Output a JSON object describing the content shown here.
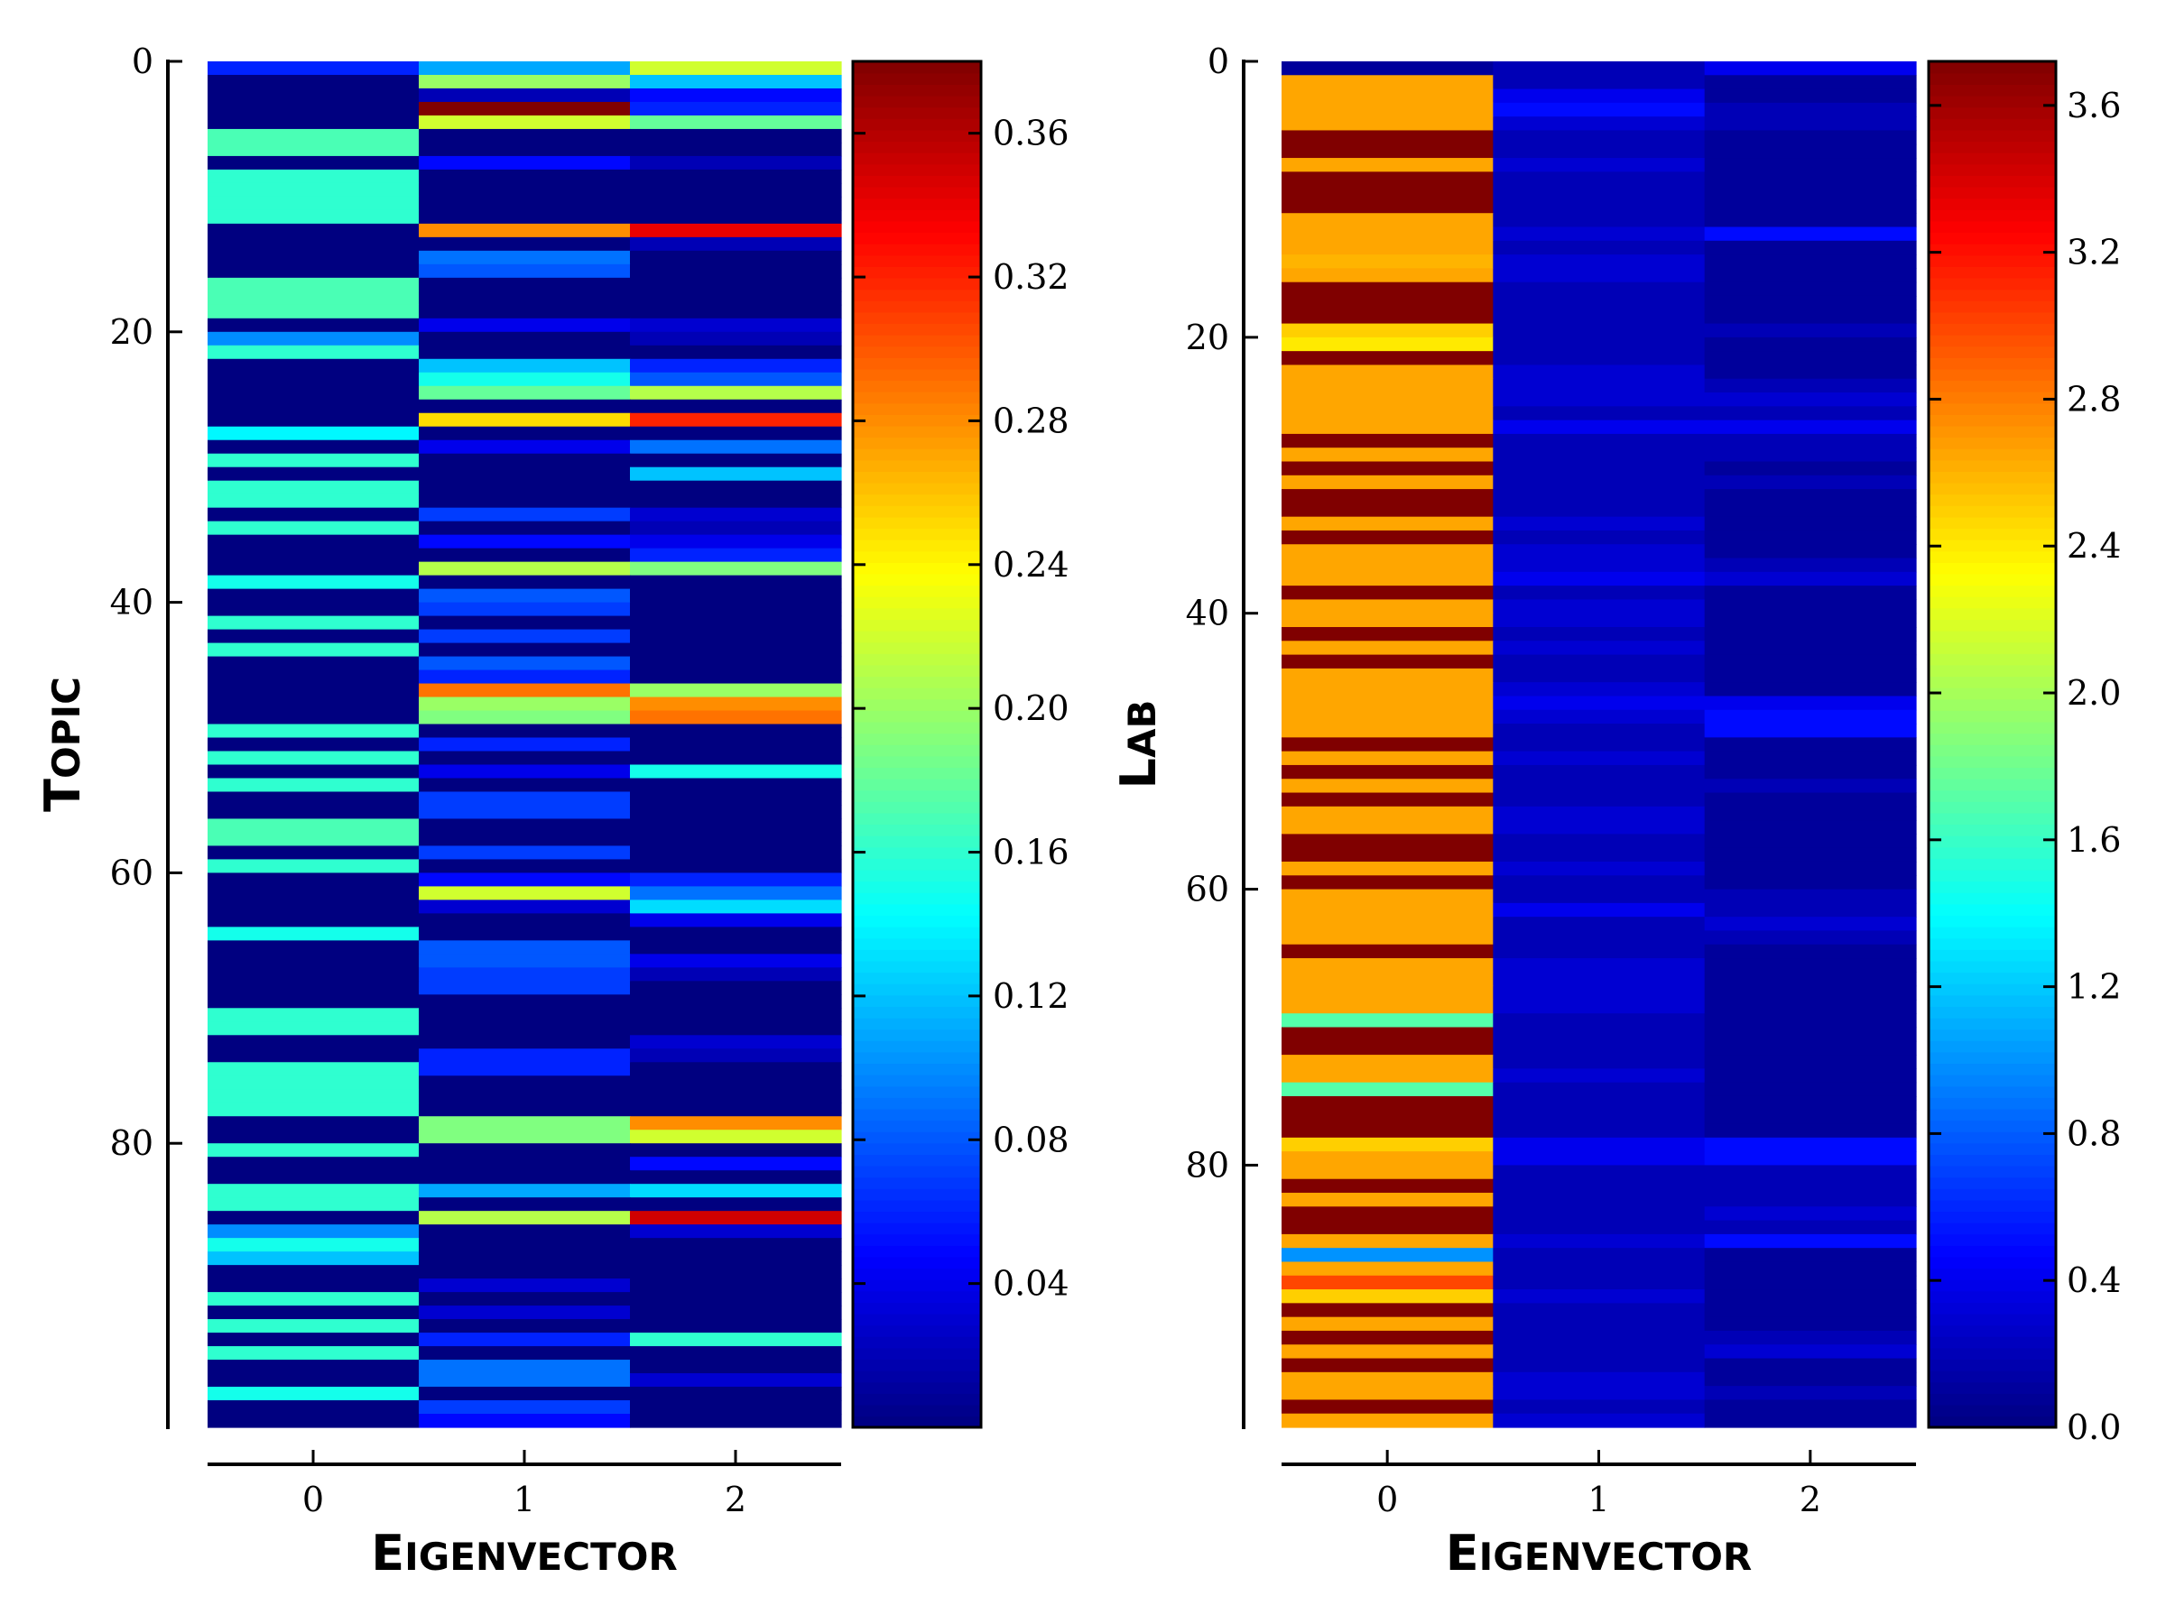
{
  "chart_data": [
    {
      "type": "heatmap",
      "ylabel": "Topic",
      "xlabel": "Eigenvector",
      "x_categories": [
        "0",
        "1",
        "2"
      ],
      "y_ticks": [
        0,
        20,
        40,
        60,
        80
      ],
      "ylim": [
        0,
        99
      ],
      "colormap": "jet",
      "colorbar": {
        "vmin": 0.0,
        "vmax": 0.38,
        "ticks": [
          "0.04",
          "0.08",
          "0.12",
          "0.16",
          "0.20",
          "0.24",
          "0.28",
          "0.32",
          "0.36"
        ]
      },
      "values": [
        [
          0.06,
          0.11,
          0.22
        ],
        [
          0.0,
          0.2,
          0.12
        ],
        [
          0.0,
          0.02,
          0.05
        ],
        [
          0.0,
          0.38,
          0.06
        ],
        [
          0.0,
          0.22,
          0.18
        ],
        [
          0.17,
          0.0,
          0.0
        ],
        [
          0.17,
          0.0,
          0.0
        ],
        [
          0.0,
          0.05,
          0.02
        ],
        [
          0.16,
          0.0,
          0.0
        ],
        [
          0.16,
          0.0,
          0.0
        ],
        [
          0.16,
          0.0,
          0.0
        ],
        [
          0.16,
          0.0,
          0.0
        ],
        [
          0.0,
          0.28,
          0.34
        ],
        [
          0.0,
          0.0,
          0.02
        ],
        [
          0.0,
          0.09,
          0.0
        ],
        [
          0.0,
          0.08,
          0.0
        ],
        [
          0.17,
          0.0,
          0.0
        ],
        [
          0.17,
          0.0,
          0.0
        ],
        [
          0.17,
          0.0,
          0.0
        ],
        [
          0.0,
          0.04,
          0.03
        ],
        [
          0.1,
          0.0,
          0.02
        ],
        [
          0.16,
          0.0,
          0.0
        ],
        [
          0.0,
          0.12,
          0.06
        ],
        [
          0.0,
          0.15,
          0.08
        ],
        [
          0.0,
          0.18,
          0.21
        ],
        [
          0.0,
          0.0,
          0.0
        ],
        [
          0.0,
          0.25,
          0.32
        ],
        [
          0.14,
          0.0,
          0.0
        ],
        [
          0.0,
          0.04,
          0.09
        ],
        [
          0.16,
          0.0,
          0.0
        ],
        [
          0.0,
          0.0,
          0.12
        ],
        [
          0.16,
          0.0,
          0.0
        ],
        [
          0.16,
          0.0,
          0.0
        ],
        [
          0.0,
          0.07,
          0.03
        ],
        [
          0.16,
          0.0,
          0.02
        ],
        [
          0.0,
          0.05,
          0.04
        ],
        [
          0.0,
          0.0,
          0.06
        ],
        [
          0.0,
          0.21,
          0.19
        ],
        [
          0.15,
          0.0,
          0.0
        ],
        [
          0.0,
          0.08,
          0.0
        ],
        [
          0.0,
          0.07,
          0.0
        ],
        [
          0.16,
          0.0,
          0.0
        ],
        [
          0.0,
          0.07,
          0.0
        ],
        [
          0.16,
          0.0,
          0.0
        ],
        [
          0.0,
          0.08,
          0.0
        ],
        [
          0.0,
          0.06,
          0.0
        ],
        [
          0.0,
          0.29,
          0.2
        ],
        [
          0.0,
          0.2,
          0.28
        ],
        [
          0.0,
          0.19,
          0.29
        ],
        [
          0.16,
          0.0,
          0.0
        ],
        [
          0.0,
          0.06,
          0.0
        ],
        [
          0.16,
          0.0,
          0.0
        ],
        [
          0.0,
          0.04,
          0.15
        ],
        [
          0.16,
          0.0,
          0.0
        ],
        [
          0.0,
          0.07,
          0.0
        ],
        [
          0.0,
          0.07,
          0.0
        ],
        [
          0.17,
          0.0,
          0.0
        ],
        [
          0.17,
          0.0,
          0.0
        ],
        [
          0.0,
          0.07,
          0.0
        ],
        [
          0.16,
          0.0,
          0.0
        ],
        [
          0.0,
          0.05,
          0.06
        ],
        [
          0.0,
          0.22,
          0.09
        ],
        [
          0.0,
          0.03,
          0.13
        ],
        [
          0.0,
          0.0,
          0.04
        ],
        [
          0.15,
          0.0,
          0.0
        ],
        [
          0.0,
          0.08,
          0.0
        ],
        [
          0.0,
          0.08,
          0.04
        ],
        [
          0.0,
          0.07,
          0.02
        ],
        [
          0.0,
          0.07,
          0.0
        ],
        [
          0.0,
          0.0,
          0.0
        ],
        [
          0.16,
          0.0,
          0.0
        ],
        [
          0.16,
          0.0,
          0.0
        ],
        [
          0.0,
          0.0,
          0.03
        ],
        [
          0.0,
          0.06,
          0.02
        ],
        [
          0.16,
          0.06,
          0.0
        ],
        [
          0.16,
          0.0,
          0.0
        ],
        [
          0.16,
          0.0,
          0.0
        ],
        [
          0.16,
          0.0,
          0.0
        ],
        [
          0.0,
          0.19,
          0.28
        ],
        [
          0.0,
          0.19,
          0.22
        ],
        [
          0.16,
          0.0,
          0.0
        ],
        [
          0.0,
          0.0,
          0.05
        ],
        [
          0.0,
          0.0,
          0.0
        ],
        [
          0.16,
          0.11,
          0.13
        ],
        [
          0.16,
          0.0,
          0.0
        ],
        [
          0.0,
          0.21,
          0.35
        ],
        [
          0.1,
          0.0,
          0.03
        ],
        [
          0.15,
          0.0,
          0.0
        ],
        [
          0.12,
          0.0,
          0.0
        ],
        [
          0.0,
          0.0,
          0.0
        ],
        [
          0.0,
          0.03,
          0.0
        ],
        [
          0.16,
          0.0,
          0.0
        ],
        [
          0.0,
          0.03,
          0.0
        ],
        [
          0.16,
          0.0,
          0.0
        ],
        [
          0.0,
          0.06,
          0.16
        ],
        [
          0.16,
          0.0,
          0.0
        ],
        [
          0.0,
          0.09,
          0.0
        ],
        [
          0.0,
          0.09,
          0.03
        ],
        [
          0.15,
          0.0,
          0.0
        ],
        [
          0.0,
          0.07,
          0.0
        ],
        [
          0.0,
          0.05,
          0.0
        ]
      ]
    },
    {
      "type": "heatmap",
      "ylabel": "Lab",
      "xlabel": "Eigenvector",
      "x_categories": [
        "0",
        "1",
        "2"
      ],
      "y_ticks": [
        0,
        20,
        40,
        60,
        80
      ],
      "ylim": [
        0,
        99
      ],
      "colormap": "jet",
      "colorbar": {
        "vmin": 0.0,
        "vmax": 3.72,
        "ticks": [
          "0.0",
          "0.4",
          "0.8",
          "1.2",
          "1.6",
          "2.0",
          "2.4",
          "2.8",
          "3.2",
          "3.6"
        ]
      },
      "values": [
        [
          0.1,
          0.2,
          0.4
        ],
        [
          2.65,
          0.2,
          0.1
        ],
        [
          2.65,
          0.4,
          0.1
        ],
        [
          2.65,
          0.5,
          0.2
        ],
        [
          2.65,
          0.3,
          0.2
        ],
        [
          3.72,
          0.2,
          0.1
        ],
        [
          3.72,
          0.2,
          0.1
        ],
        [
          2.65,
          0.3,
          0.1
        ],
        [
          3.72,
          0.2,
          0.1
        ],
        [
          3.72,
          0.2,
          0.1
        ],
        [
          3.72,
          0.2,
          0.1
        ],
        [
          2.65,
          0.2,
          0.1
        ],
        [
          2.65,
          0.3,
          0.5
        ],
        [
          2.65,
          0.2,
          0.1
        ],
        [
          2.6,
          0.3,
          0.1
        ],
        [
          2.65,
          0.3,
          0.1
        ],
        [
          3.72,
          0.2,
          0.1
        ],
        [
          3.72,
          0.2,
          0.1
        ],
        [
          3.72,
          0.2,
          0.1
        ],
        [
          2.5,
          0.2,
          0.2
        ],
        [
          2.4,
          0.2,
          0.1
        ],
        [
          3.72,
          0.2,
          0.1
        ],
        [
          2.65,
          0.3,
          0.1
        ],
        [
          2.65,
          0.3,
          0.2
        ],
        [
          2.65,
          0.3,
          0.3
        ],
        [
          2.65,
          0.2,
          0.2
        ],
        [
          2.65,
          0.4,
          0.4
        ],
        [
          3.72,
          0.2,
          0.2
        ],
        [
          2.65,
          0.2,
          0.2
        ],
        [
          3.72,
          0.2,
          0.1
        ],
        [
          2.65,
          0.2,
          0.2
        ],
        [
          3.72,
          0.2,
          0.1
        ],
        [
          3.72,
          0.2,
          0.1
        ],
        [
          2.65,
          0.3,
          0.1
        ],
        [
          3.72,
          0.2,
          0.1
        ],
        [
          2.65,
          0.3,
          0.1
        ],
        [
          2.65,
          0.3,
          0.2
        ],
        [
          2.65,
          0.4,
          0.3
        ],
        [
          3.72,
          0.2,
          0.1
        ],
        [
          2.65,
          0.3,
          0.1
        ],
        [
          2.65,
          0.3,
          0.1
        ],
        [
          3.72,
          0.2,
          0.1
        ],
        [
          2.65,
          0.3,
          0.1
        ],
        [
          3.72,
          0.2,
          0.1
        ],
        [
          2.65,
          0.2,
          0.1
        ],
        [
          2.65,
          0.3,
          0.1
        ],
        [
          2.65,
          0.4,
          0.4
        ],
        [
          2.65,
          0.3,
          0.5
        ],
        [
          2.65,
          0.2,
          0.5
        ],
        [
          3.72,
          0.2,
          0.1
        ],
        [
          2.65,
          0.3,
          0.1
        ],
        [
          3.72,
          0.2,
          0.1
        ],
        [
          2.65,
          0.2,
          0.2
        ],
        [
          3.72,
          0.2,
          0.1
        ],
        [
          2.65,
          0.3,
          0.1
        ],
        [
          2.65,
          0.3,
          0.1
        ],
        [
          3.72,
          0.2,
          0.1
        ],
        [
          3.72,
          0.2,
          0.1
        ],
        [
          2.65,
          0.3,
          0.1
        ],
        [
          3.72,
          0.2,
          0.1
        ],
        [
          2.65,
          0.2,
          0.2
        ],
        [
          2.65,
          0.4,
          0.2
        ],
        [
          2.65,
          0.2,
          0.3
        ],
        [
          2.65,
          0.2,
          0.2
        ],
        [
          3.72,
          0.2,
          0.1
        ],
        [
          2.65,
          0.3,
          0.1
        ],
        [
          2.65,
          0.3,
          0.1
        ],
        [
          2.65,
          0.3,
          0.1
        ],
        [
          2.65,
          0.3,
          0.1
        ],
        [
          1.7,
          0.2,
          0.1
        ],
        [
          3.72,
          0.2,
          0.1
        ],
        [
          3.72,
          0.2,
          0.1
        ],
        [
          2.65,
          0.2,
          0.1
        ],
        [
          2.65,
          0.3,
          0.1
        ],
        [
          1.7,
          0.2,
          0.1
        ],
        [
          3.72,
          0.2,
          0.1
        ],
        [
          3.72,
          0.2,
          0.1
        ],
        [
          3.72,
          0.2,
          0.1
        ],
        [
          2.5,
          0.4,
          0.5
        ],
        [
          2.65,
          0.4,
          0.5
        ],
        [
          2.65,
          0.2,
          0.2
        ],
        [
          3.72,
          0.2,
          0.2
        ],
        [
          2.65,
          0.2,
          0.2
        ],
        [
          3.72,
          0.2,
          0.3
        ],
        [
          3.72,
          0.2,
          0.2
        ],
        [
          2.65,
          0.3,
          0.5
        ],
        [
          1.0,
          0.2,
          0.1
        ],
        [
          2.65,
          0.2,
          0.1
        ],
        [
          3.0,
          0.2,
          0.1
        ],
        [
          2.5,
          0.3,
          0.1
        ],
        [
          3.72,
          0.2,
          0.1
        ],
        [
          2.65,
          0.2,
          0.1
        ],
        [
          3.72,
          0.2,
          0.2
        ],
        [
          2.65,
          0.2,
          0.3
        ],
        [
          3.72,
          0.2,
          0.1
        ],
        [
          2.65,
          0.3,
          0.1
        ],
        [
          2.65,
          0.3,
          0.2
        ],
        [
          3.72,
          0.2,
          0.1
        ],
        [
          2.65,
          0.3,
          0.1
        ]
      ]
    }
  ]
}
